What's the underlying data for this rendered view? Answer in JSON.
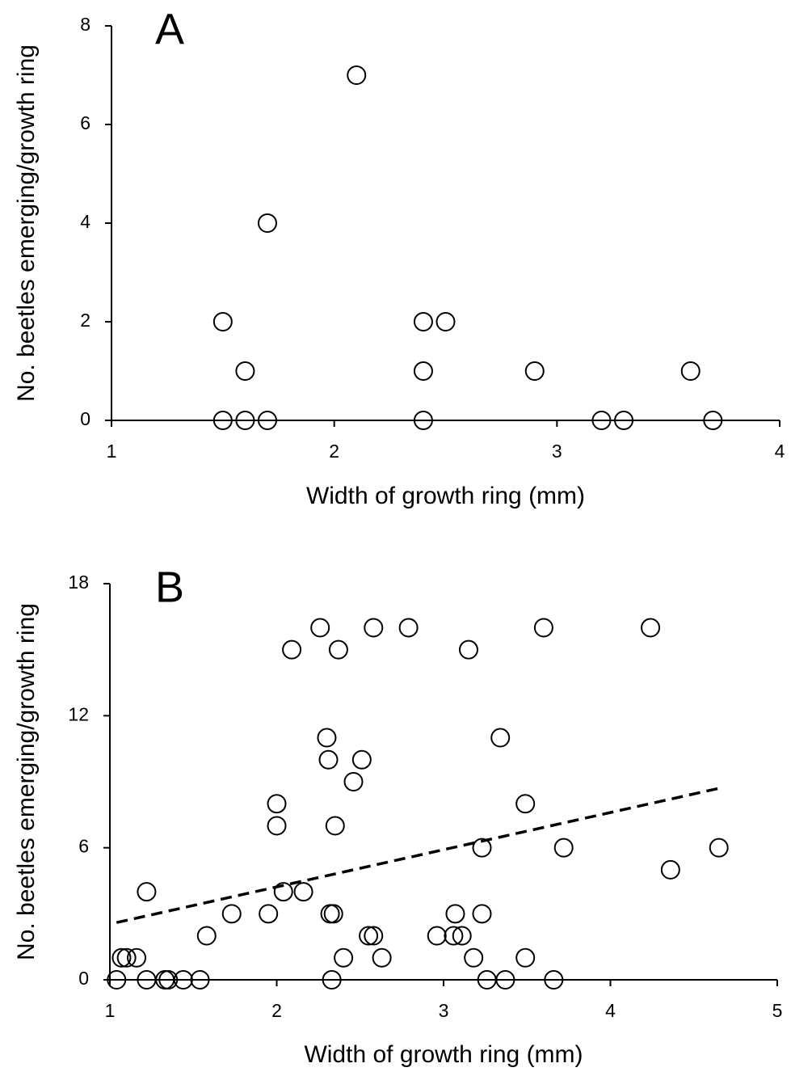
{
  "chart_data": [
    {
      "type": "scatter",
      "title": "A",
      "xlabel": "Width of growth ring (mm)",
      "ylabel": "No. beetles emerging/growth ring",
      "x": [
        1.5,
        1.5,
        1.6,
        1.6,
        1.7,
        1.7,
        2.1,
        2.4,
        2.5,
        2.4,
        2.4,
        2.9,
        3.2,
        3.3,
        3.6,
        3.7
      ],
      "values": [
        2,
        0,
        1,
        0,
        4,
        0,
        7,
        2,
        2,
        1,
        0,
        1,
        0,
        0,
        1,
        0
      ],
      "color": "#000000",
      "xlim": [
        1,
        4
      ],
      "ylim": [
        0,
        8
      ],
      "xticks": [
        1,
        2,
        3,
        4
      ],
      "yticks": [
        0,
        2,
        4,
        6,
        8
      ]
    },
    {
      "type": "scatter",
      "title": "B",
      "xlabel": "Width of growth ring (mm)",
      "ylabel": "No. beetles emerging/growth ring",
      "x": [
        1.04,
        1.07,
        1.1,
        1.16,
        1.22,
        1.22,
        1.33,
        1.35,
        1.44,
        1.54,
        1.58,
        1.73,
        1.95,
        2.0,
        2.0,
        2.04,
        2.09,
        2.16,
        2.26,
        2.3,
        2.31,
        2.32,
        2.34,
        2.33,
        2.35,
        2.37,
        2.4,
        2.46,
        2.51,
        2.55,
        2.58,
        2.58,
        2.63,
        2.79,
        2.96,
        3.06,
        3.07,
        3.11,
        3.15,
        3.18,
        3.23,
        3.23,
        3.26,
        3.34,
        3.37,
        3.49,
        3.49,
        3.6,
        3.66,
        3.72,
        4.24,
        4.36,
        4.65
      ],
      "values": [
        0,
        1,
        1,
        1,
        4,
        0,
        0,
        0,
        0,
        0,
        2,
        3,
        3,
        8,
        7,
        4,
        15,
        4,
        16,
        11,
        10,
        3,
        3,
        0,
        7,
        15,
        1,
        9,
        10,
        2,
        16,
        2,
        1,
        16,
        2,
        2,
        3,
        2,
        15,
        1,
        6,
        3,
        0,
        11,
        0,
        8,
        1,
        16,
        0,
        6,
        16,
        5,
        6
      ],
      "color": "#000000",
      "trendline": {
        "x": [
          1.04,
          4.65
        ],
        "values": [
          2.6,
          8.7
        ]
      },
      "xlim": [
        1,
        5
      ],
      "ylim": [
        0,
        18
      ],
      "xticks": [
        1,
        2,
        3,
        4,
        5
      ],
      "yticks": [
        0,
        6,
        12,
        18
      ]
    }
  ]
}
